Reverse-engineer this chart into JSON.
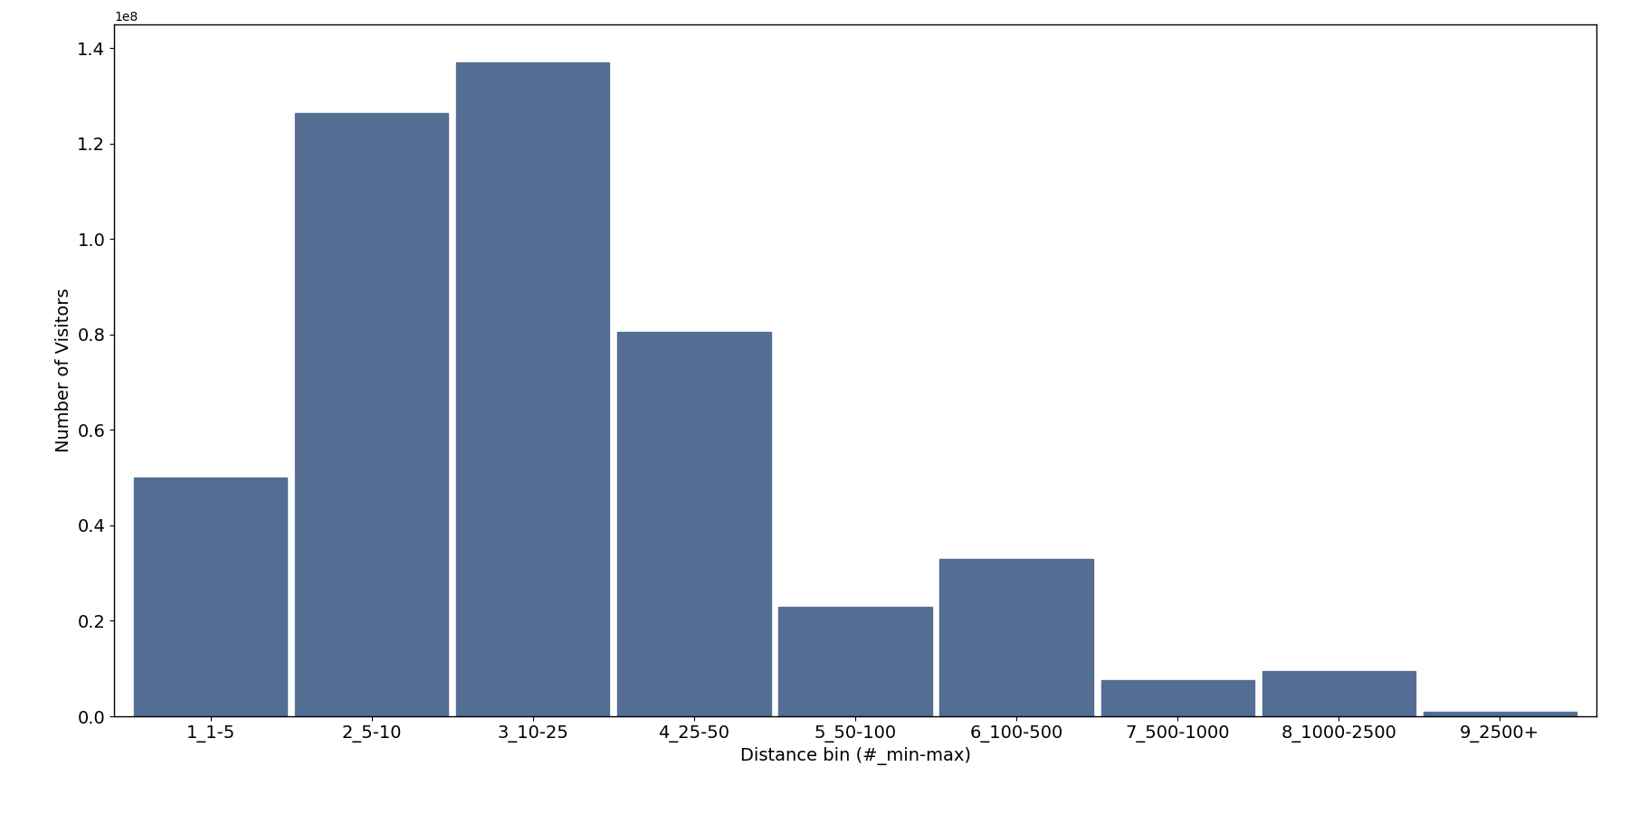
{
  "categories": [
    "1_1-5",
    "2_5-10",
    "3_10-25",
    "4_25-50",
    "5_50-100",
    "6_100-500",
    "7_500-1000",
    "8_1000-2500",
    "9_2500+"
  ],
  "values": [
    50000000.0,
    126500000.0,
    137000000.0,
    80500000.0,
    23000000.0,
    33000000.0,
    7500000.0,
    9500000.0,
    1000000.0
  ],
  "bar_color": "#546d93",
  "xlabel": "Distance bin (#_min-max)",
  "ylabel": "Number of Visitors",
  "ylim": [
    0,
    145000000.0
  ],
  "background_color": "#ffffff",
  "fig_width": 18.0,
  "fig_height": 9.0,
  "dpi": 100,
  "bar_width": 0.95,
  "tick_fontsize": 14,
  "label_fontsize": 14
}
